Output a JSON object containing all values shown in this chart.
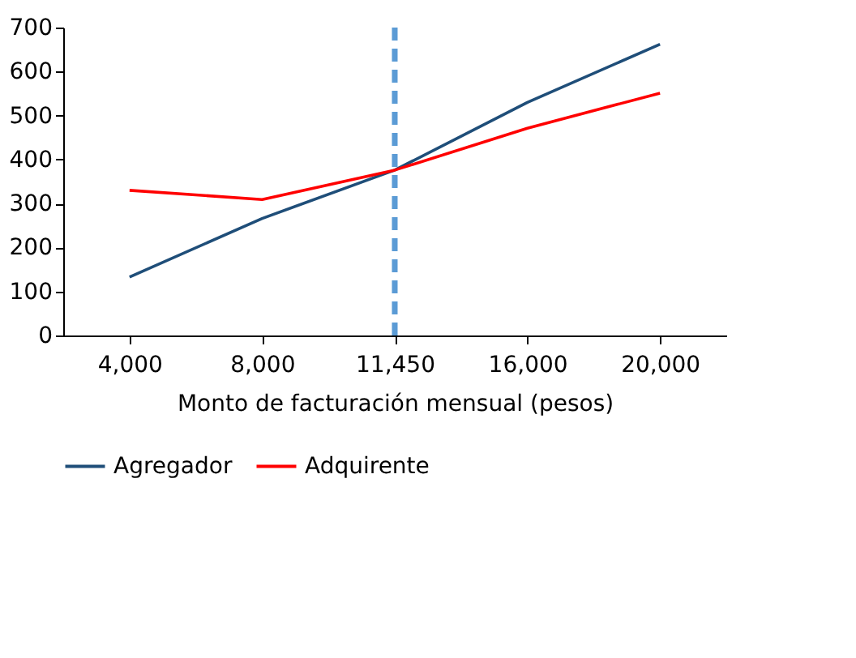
{
  "chart_data": {
    "type": "line",
    "xlabel": "Monto de facturación mensual (pesos)",
    "categories": [
      "4,000",
      "8,000",
      "11,450",
      "16,000",
      "20,000"
    ],
    "series": [
      {
        "name": "Agregador",
        "color": "#1f4e79",
        "values": [
          133,
          266,
          376,
          530,
          662
        ]
      },
      {
        "name": "Adquirente",
        "color": "#ff0000",
        "values": [
          330,
          309,
          376,
          471,
          551
        ]
      }
    ],
    "ylim": [
      0,
      700
    ],
    "yticks": [
      0,
      100,
      200,
      300,
      400,
      500,
      600,
      700
    ],
    "ref_lines": [
      {
        "axis": "x",
        "value": "11,450",
        "color": "#5b9bd5",
        "line_style": "dashed"
      }
    ],
    "grid": false,
    "legend": "bottom",
    "marker": "none",
    "line_style": "solid"
  }
}
